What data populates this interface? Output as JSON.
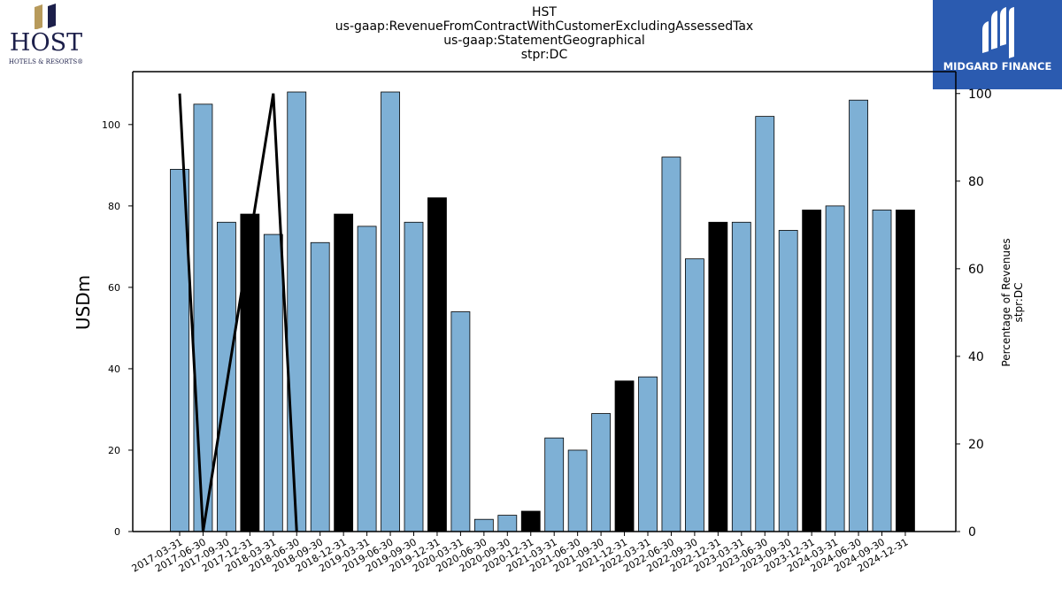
{
  "header": {
    "title_lines": [
      "HST",
      "us-gaap:RevenueFromContractWithCustomerExcludingAssessedTax",
      "us-gaap:StatementGeographical",
      "stpr:DC"
    ]
  },
  "logos": {
    "host_name": "HOST",
    "host_tagline": "HOTELS & RESORTS®",
    "midgard_name": "MIDGARD FINANCE"
  },
  "colors": {
    "bar_default": "#7eb0d5",
    "bar_q4": "#000000",
    "line": "#000000",
    "host_gold": "#b79a5b",
    "host_navy": "#1c1f4a",
    "midgard_bg": "#2b5bb0"
  },
  "chart_data": {
    "type": "bar",
    "ylabel": "USDm",
    "y2label_lines": [
      "Percentage of Revenues",
      "stpr:DC"
    ],
    "ylim": [
      0,
      113
    ],
    "y2lim": [
      0,
      105
    ],
    "yticks": [
      0,
      20,
      40,
      60,
      80,
      100
    ],
    "y2ticks": [
      0,
      20,
      40,
      60,
      80,
      100
    ],
    "grid": false,
    "categories": [
      "2017-03-31",
      "2017-06-30",
      "2017-09-30",
      "2017-12-31",
      "2018-03-31",
      "2018-06-30",
      "2018-09-30",
      "2018-12-31",
      "2019-03-31",
      "2019-06-30",
      "2019-09-30",
      "2019-12-31",
      "2020-03-31",
      "2020-06-30",
      "2020-09-30",
      "2020-12-31",
      "2021-03-31",
      "2021-06-30",
      "2021-09-30",
      "2021-12-31",
      "2022-03-31",
      "2022-06-30",
      "2022-09-30",
      "2022-12-31",
      "2023-03-31",
      "2023-06-30",
      "2023-09-30",
      "2023-12-31",
      "2024-03-31",
      "2024-06-30",
      "2024-09-30",
      "2024-12-31"
    ],
    "series": [
      {
        "values": [
          89,
          105,
          76,
          78,
          73,
          108,
          71,
          78,
          75,
          108,
          76,
          82,
          54,
          3,
          4,
          5,
          23,
          20,
          29,
          37,
          38,
          92,
          67,
          76,
          76,
          102,
          74,
          79,
          80,
          106,
          79,
          79
        ]
      }
    ],
    "line_series": {
      "x_indices": [
        0,
        1,
        4,
        5
      ],
      "values": [
        100,
        0,
        100,
        0
      ]
    }
  }
}
